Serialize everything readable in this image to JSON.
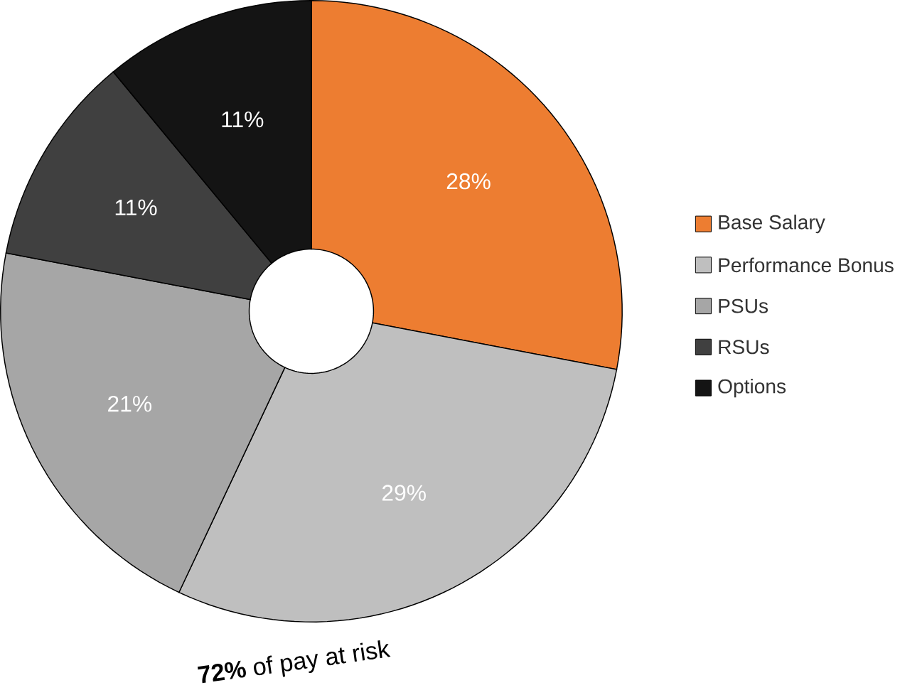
{
  "chart_data": {
    "type": "donut",
    "categories": [
      "Base Salary",
      "Performance Bonus",
      "PSUs",
      "RSUs",
      "Options"
    ],
    "values": [
      28,
      29,
      21,
      11,
      11
    ],
    "colors": [
      "#ed7d31",
      "#bfbfbf",
      "#a6a6a6",
      "#404040",
      "#141414"
    ],
    "value_labels": [
      "28%",
      "29%",
      "21%",
      "11%",
      "11%"
    ],
    "legend": "right",
    "annotations": [
      "**72%** of pay at risk"
    ]
  }
}
